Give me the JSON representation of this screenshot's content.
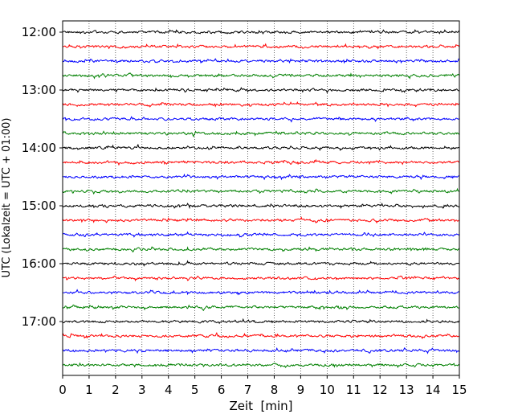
{
  "chart_data": {
    "type": "line",
    "title": "",
    "xlabel": "Zeit  [min]",
    "ylabel": "UTC (Lokalzeit = UTC + 01:00)",
    "xlim": [
      0,
      15
    ],
    "x_ticks": [
      "0",
      "1",
      "2",
      "3",
      "4",
      "5",
      "6",
      "7",
      "8",
      "9",
      "10",
      "11",
      "12",
      "13",
      "14",
      "15"
    ],
    "y_tick_labels": [
      "12:00",
      "13:00",
      "14:00",
      "15:00",
      "16:00",
      "17:00"
    ],
    "grid": true,
    "trace_colors": [
      "#000000",
      "#ff0000",
      "#0000ff",
      "#008000"
    ],
    "traces": [
      {
        "time": "12:00",
        "color": "#000000"
      },
      {
        "time": "12:15",
        "color": "#ff0000"
      },
      {
        "time": "12:30",
        "color": "#0000ff"
      },
      {
        "time": "12:45",
        "color": "#008000"
      },
      {
        "time": "13:00",
        "color": "#000000"
      },
      {
        "time": "13:15",
        "color": "#ff0000"
      },
      {
        "time": "13:30",
        "color": "#0000ff"
      },
      {
        "time": "13:45",
        "color": "#008000"
      },
      {
        "time": "14:00",
        "color": "#000000"
      },
      {
        "time": "14:15",
        "color": "#ff0000"
      },
      {
        "time": "14:30",
        "color": "#0000ff"
      },
      {
        "time": "14:45",
        "color": "#008000"
      },
      {
        "time": "15:00",
        "color": "#000000"
      },
      {
        "time": "15:15",
        "color": "#ff0000"
      },
      {
        "time": "15:30",
        "color": "#0000ff"
      },
      {
        "time": "15:45",
        "color": "#008000"
      },
      {
        "time": "16:00",
        "color": "#000000"
      },
      {
        "time": "16:15",
        "color": "#ff0000"
      },
      {
        "time": "16:30",
        "color": "#0000ff"
      },
      {
        "time": "16:45",
        "color": "#008000"
      },
      {
        "time": "17:00",
        "color": "#000000"
      },
      {
        "time": "17:15",
        "color": "#ff0000"
      },
      {
        "time": "17:30",
        "color": "#0000ff"
      },
      {
        "time": "17:45",
        "color": "#008000"
      }
    ]
  }
}
